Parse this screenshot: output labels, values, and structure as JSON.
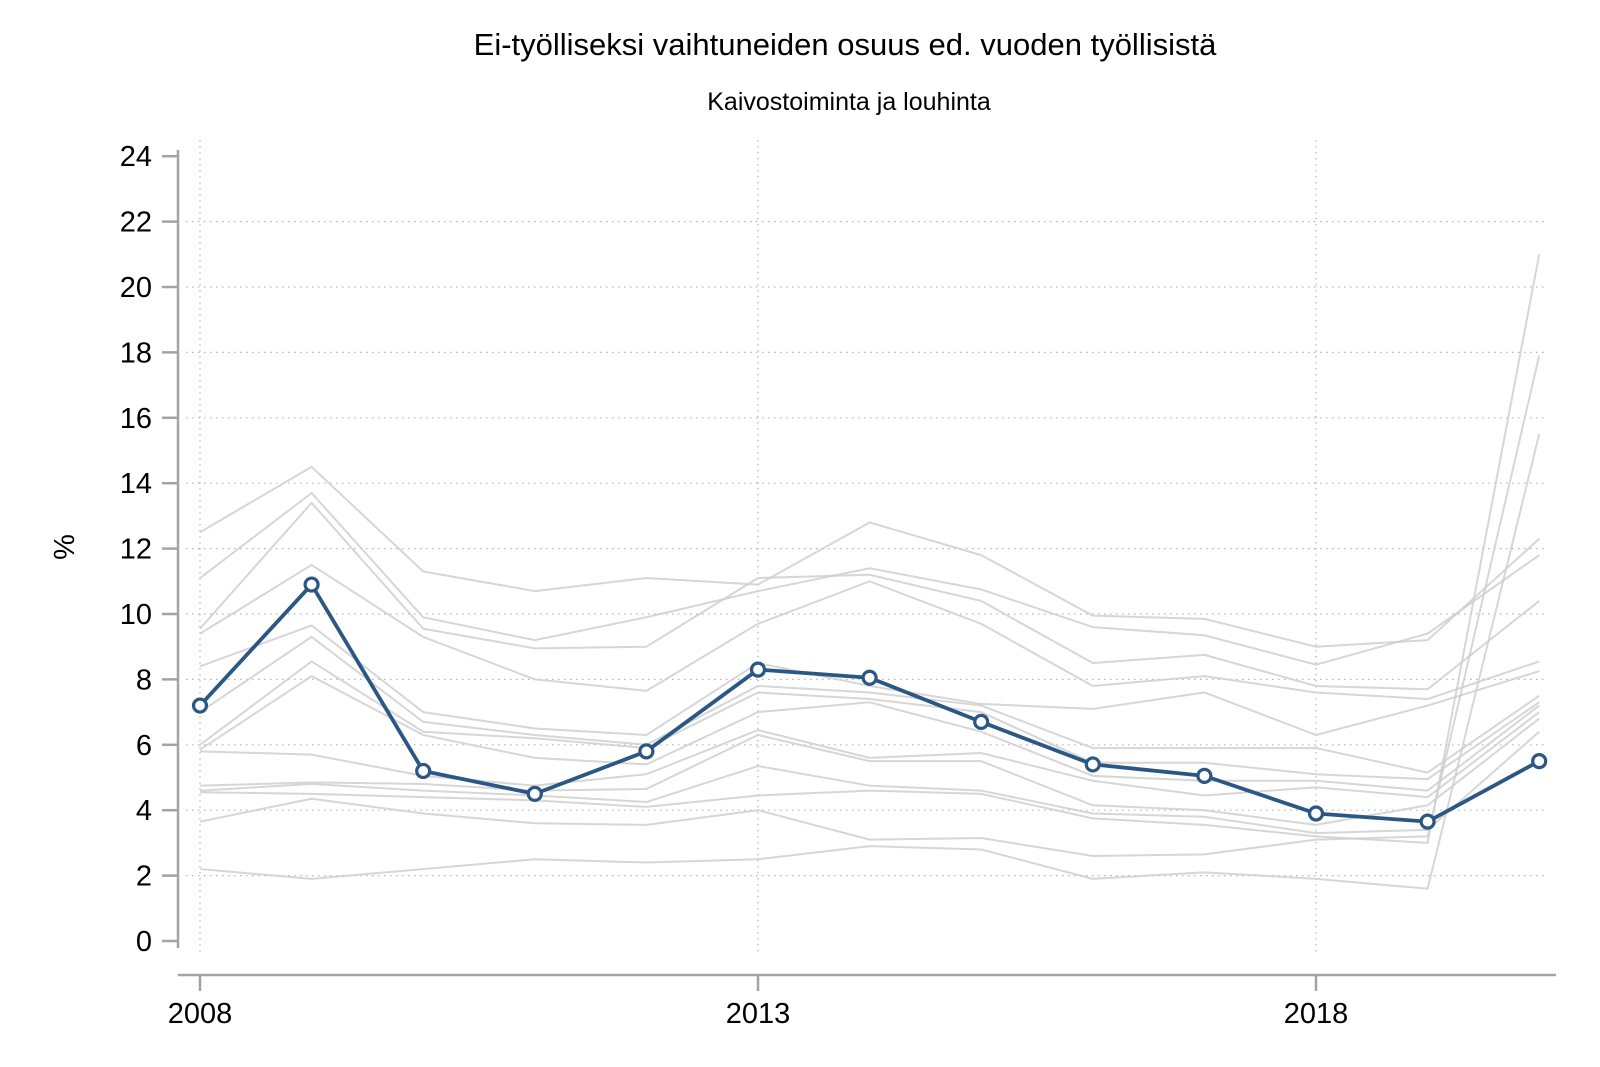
{
  "chart_data": {
    "type": "line",
    "title": "Ei-työlliseksi vaihtuneiden osuus ed. vuoden työllisistä",
    "subtitle": "Kaivostoiminta ja louhinta",
    "ylabel": "%",
    "ylim": [
      0,
      24
    ],
    "ytick_step": 2,
    "xlim": [
      2008,
      2020
    ],
    "xticks": [
      2008,
      2013,
      2018
    ],
    "grid": "dotted horizontal and vertical gridlines",
    "legend_position": "none",
    "x": [
      2008,
      2009,
      2010,
      2011,
      2012,
      2013,
      2014,
      2015,
      2016,
      2017,
      2018,
      2019,
      2020
    ],
    "highlight_series": {
      "name": "Kaivostoiminta ja louhinta",
      "color": "#2a5783",
      "marker": "open-circle",
      "values": [
        7.2,
        10.9,
        5.2,
        4.5,
        5.8,
        8.3,
        8.05,
        6.7,
        5.4,
        5.05,
        3.9,
        3.65,
        5.5
      ]
    },
    "background_series_color": "#cfcfcf",
    "background_series": [
      {
        "name": "background-1",
        "values": [
          12.5,
          14.5,
          11.3,
          10.7,
          11.1,
          10.9,
          12.8,
          11.8,
          9.95,
          9.85,
          9.0,
          9.2,
          12.3
        ]
      },
      {
        "name": "background-2",
        "values": [
          11.1,
          13.7,
          9.9,
          9.2,
          9.9,
          10.7,
          11.4,
          10.75,
          9.6,
          9.35,
          8.45,
          9.4,
          11.8
        ]
      },
      {
        "name": "background-3",
        "values": [
          9.55,
          13.4,
          9.55,
          8.95,
          9.0,
          11.1,
          11.2,
          10.4,
          8.5,
          8.75,
          7.8,
          7.7,
          10.4
        ]
      },
      {
        "name": "background-4",
        "values": [
          9.4,
          11.5,
          9.3,
          8.0,
          7.65,
          9.7,
          11.0,
          9.7,
          7.8,
          8.1,
          7.6,
          7.4,
          8.55
        ]
      },
      {
        "name": "background-5",
        "values": [
          8.4,
          9.65,
          7.0,
          6.5,
          6.3,
          8.5,
          7.8,
          7.25,
          7.1,
          7.6,
          6.3,
          7.2,
          8.25
        ]
      },
      {
        "name": "background-6",
        "values": [
          7.0,
          9.3,
          6.7,
          6.3,
          6.0,
          7.8,
          7.6,
          7.2,
          5.9,
          5.9,
          5.9,
          5.15,
          7.5
        ]
      },
      {
        "name": "background-7",
        "values": [
          6.0,
          8.55,
          6.4,
          6.2,
          5.9,
          7.6,
          7.4,
          7.0,
          5.45,
          5.45,
          5.1,
          4.95,
          7.3
        ]
      },
      {
        "name": "background-8",
        "values": [
          5.85,
          8.1,
          6.3,
          5.6,
          5.4,
          7.0,
          7.3,
          6.4,
          5.05,
          4.9,
          4.9,
          4.6,
          7.2
        ]
      },
      {
        "name": "background-9",
        "values": [
          5.8,
          5.7,
          5.05,
          4.75,
          5.1,
          6.45,
          5.6,
          5.75,
          4.9,
          4.45,
          4.7,
          4.4,
          7.0
        ]
      },
      {
        "name": "background-10",
        "values": [
          4.75,
          4.85,
          4.8,
          4.6,
          4.65,
          6.3,
          5.5,
          5.5,
          4.15,
          4.0,
          3.55,
          4.15,
          6.8
        ]
      },
      {
        "name": "background-11",
        "values": [
          4.6,
          4.8,
          4.6,
          4.45,
          4.25,
          5.35,
          4.75,
          4.6,
          3.9,
          3.8,
          3.3,
          3.4,
          6.4
        ]
      },
      {
        "name": "background-12",
        "values": [
          4.55,
          4.5,
          4.4,
          4.3,
          4.1,
          4.45,
          4.6,
          4.5,
          3.75,
          3.55,
          3.2,
          3.0,
          21.0
        ]
      },
      {
        "name": "background-13",
        "values": [
          3.65,
          4.35,
          3.9,
          3.6,
          3.55,
          4.0,
          3.1,
          3.15,
          2.6,
          2.65,
          3.1,
          3.2,
          17.9
        ]
      },
      {
        "name": "background-14",
        "values": [
          2.2,
          1.9,
          2.2,
          2.5,
          2.4,
          2.5,
          2.9,
          2.8,
          1.9,
          2.1,
          1.9,
          1.6,
          15.5
        ]
      }
    ]
  },
  "y_axis": {
    "label": "%",
    "tick_labels": [
      "0",
      "2",
      "4",
      "6",
      "8",
      "10",
      "12",
      "14",
      "16",
      "18",
      "20",
      "22",
      "24"
    ]
  },
  "x_axis": {
    "tick_labels": [
      "2008",
      "2013",
      "2018"
    ]
  },
  "colors": {
    "highlight_line": "#2a5783",
    "background_line": "#cfcfcf",
    "axis": "#a3a3a3",
    "gridline": "#b4b4b4",
    "text": "#000000",
    "background": "#ffffff"
  }
}
